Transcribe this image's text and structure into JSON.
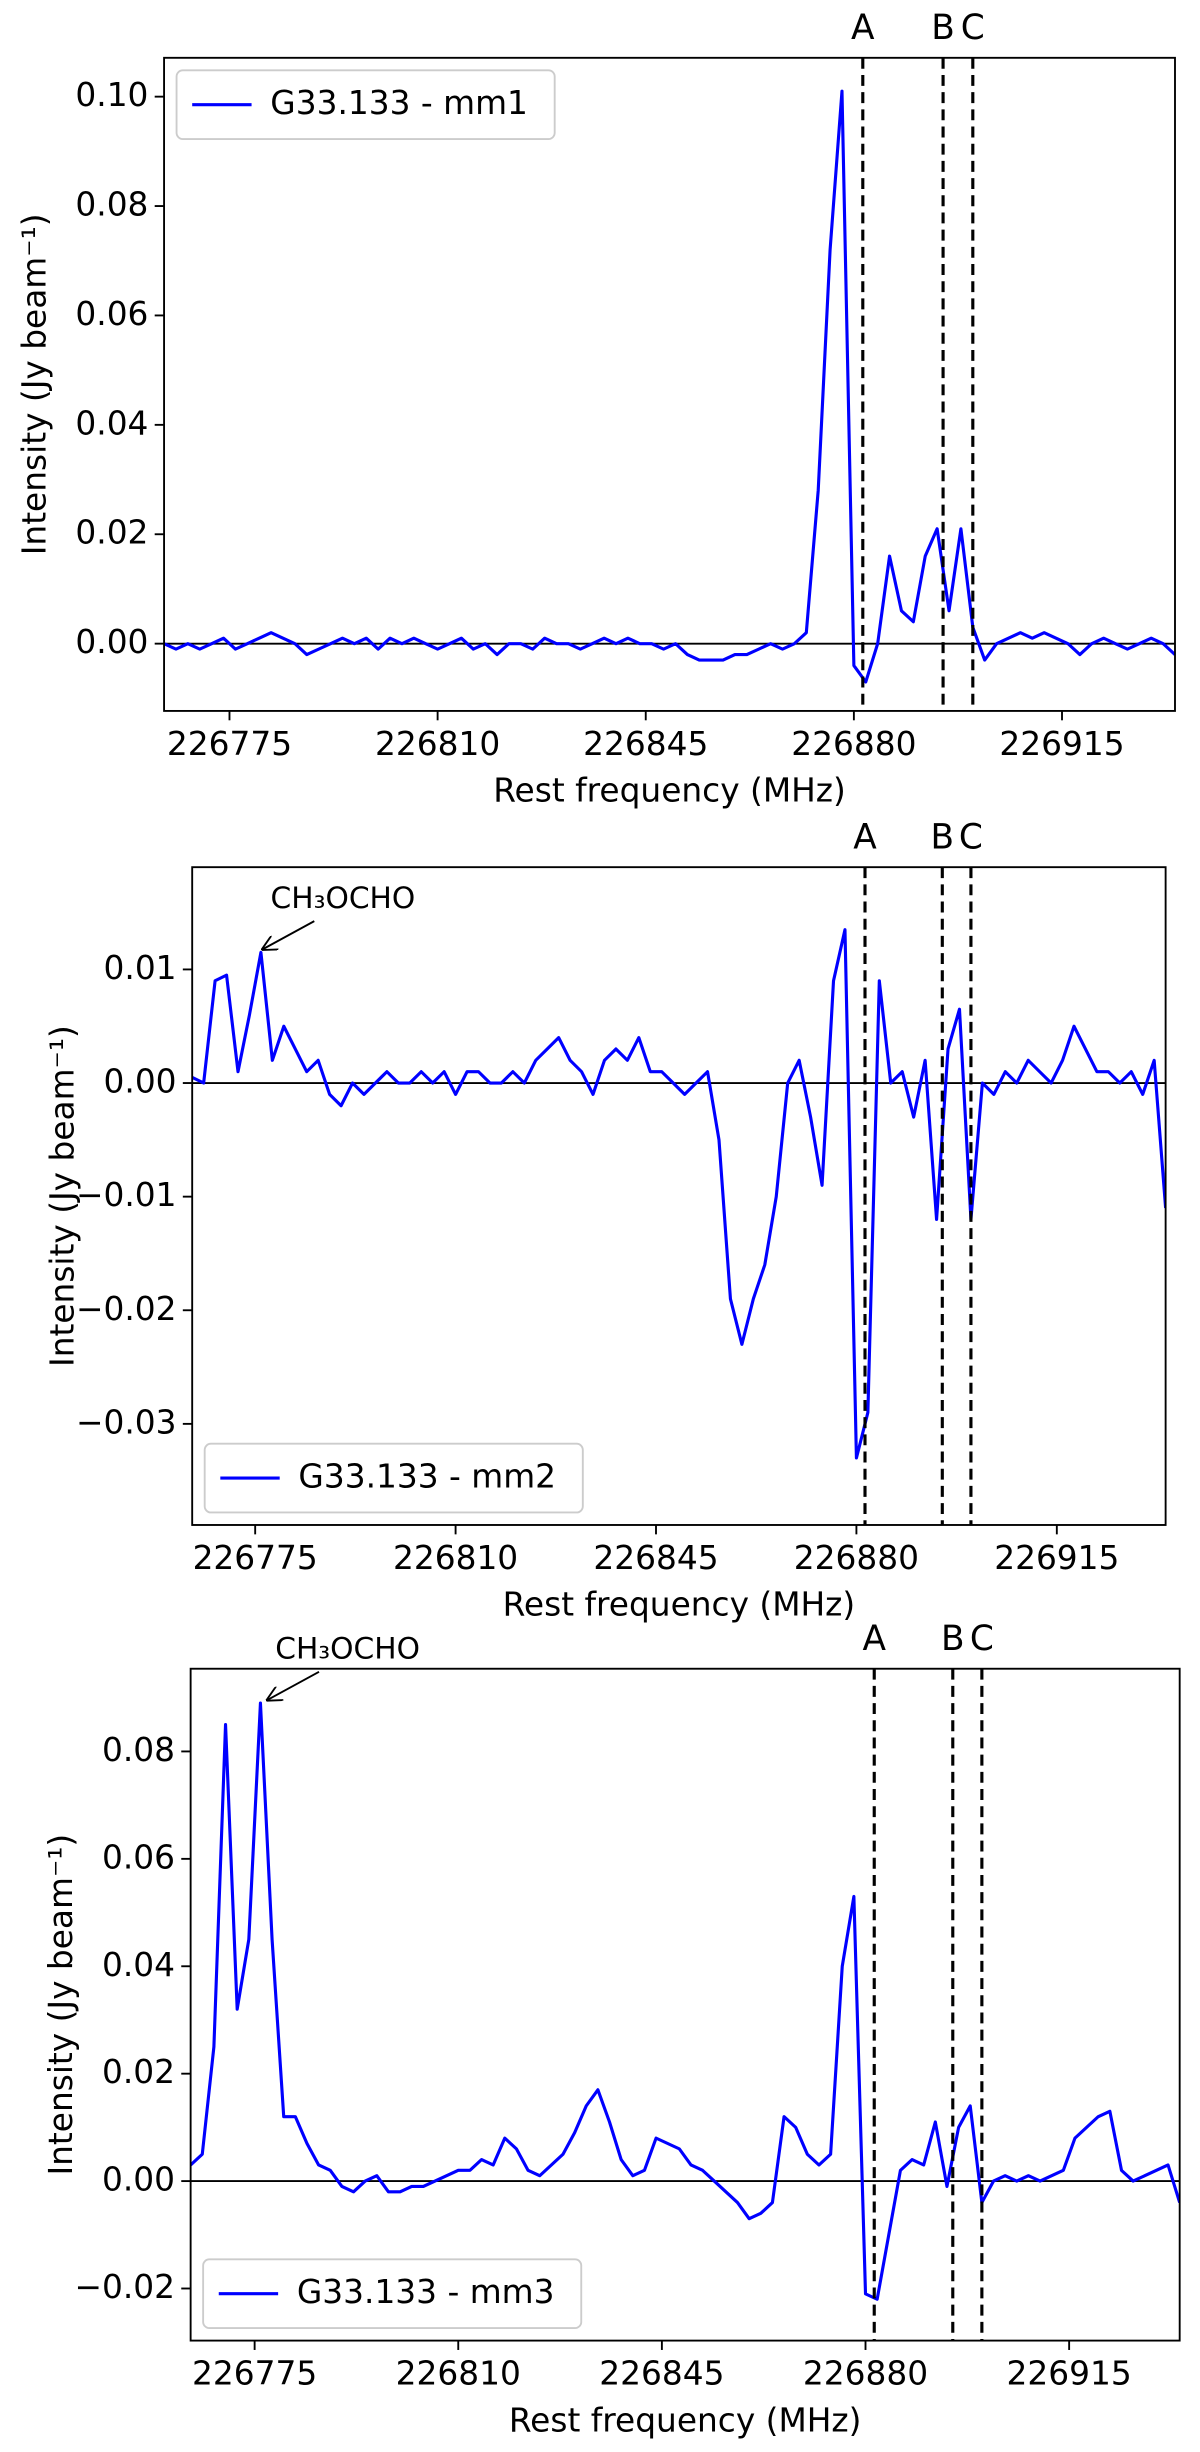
{
  "chart_data": [
    {
      "type": "line",
      "x": [
        226764,
        226766,
        226768,
        226770,
        226772,
        226774,
        226776,
        226778,
        226780,
        226782,
        226784,
        226786,
        226788,
        226790,
        226792,
        226794,
        226796,
        226798,
        226800,
        226802,
        226804,
        226806,
        226808,
        226810,
        226812,
        226814,
        226816,
        226818,
        226820,
        226822,
        226824,
        226826,
        226828,
        226830,
        226832,
        226834,
        226836,
        226838,
        226840,
        226842,
        226844,
        226846,
        226848,
        226850,
        226852,
        226854,
        226856,
        226858,
        226860,
        226862,
        226864,
        226866,
        226868,
        226870,
        226872,
        226874,
        226876,
        226878,
        226880,
        226882,
        226884,
        226886,
        226888,
        226890,
        226892,
        226894,
        226896,
        226898,
        226900,
        226902,
        226904,
        226906,
        226908,
        226910,
        226912,
        226914,
        226916,
        226918,
        226920,
        226922,
        226924,
        226926,
        226928,
        226930,
        226932,
        226934
      ],
      "series": [
        {
          "name": "G33.133 - mm1",
          "color": "#0000ff",
          "values": [
            0.0,
            -0.001,
            0.0,
            -0.001,
            0.0,
            0.001,
            -0.001,
            0.0,
            0.001,
            0.002,
            0.001,
            0.0,
            -0.002,
            -0.001,
            0.0,
            0.001,
            0.0,
            0.001,
            -0.001,
            0.001,
            0.0,
            0.001,
            0.0,
            -0.001,
            0.0,
            0.001,
            -0.001,
            0.0,
            -0.002,
            0.0,
            0.0,
            -0.001,
            0.001,
            0.0,
            0.0,
            -0.001,
            0.0,
            0.001,
            0.0,
            0.001,
            0.0,
            0.0,
            -0.001,
            0.0,
            -0.002,
            -0.003,
            -0.003,
            -0.003,
            -0.002,
            -0.002,
            -0.001,
            0.0,
            -0.001,
            0.0,
            0.002,
            0.028,
            0.072,
            0.101,
            -0.004,
            -0.007,
            0.0,
            0.016,
            0.006,
            0.004,
            0.016,
            0.021,
            0.006,
            0.021,
            0.003,
            -0.003,
            0.0,
            0.001,
            0.002,
            0.001,
            0.002,
            0.001,
            0.0,
            -0.002,
            0.0,
            0.001,
            0.0,
            -0.001,
            0.0,
            0.001,
            0.0,
            -0.002
          ]
        }
      ],
      "xlim": [
        226764,
        226934
      ],
      "ylim": [
        -0.0123,
        0.1071
      ],
      "xticks": [
        226775,
        226810,
        226845,
        226880,
        226915
      ],
      "yticks": [
        {
          "value": 0,
          "label": "0.00"
        },
        {
          "value": 0.02,
          "label": "0.02"
        },
        {
          "value": 0.04,
          "label": "0.04"
        },
        {
          "value": 0.06,
          "label": "0.06"
        },
        {
          "value": 0.08,
          "label": "0.08"
        },
        {
          "value": 0.1,
          "label": "0.10"
        }
      ],
      "xlabel": "Rest frequency (MHz)",
      "ylabel": "Intensity (Jy beam⁻¹)",
      "hline": 0,
      "legend": "upper left",
      "vlines": [
        {
          "x": 226881.5,
          "label": "A"
        },
        {
          "x": 226895,
          "label": "B"
        },
        {
          "x": 226900,
          "label": "C"
        }
      ]
    },
    {
      "type": "line",
      "x": [
        226764,
        226766,
        226768,
        226770,
        226772,
        226774,
        226776,
        226778,
        226780,
        226782,
        226784,
        226786,
        226788,
        226790,
        226792,
        226794,
        226796,
        226798,
        226800,
        226802,
        226804,
        226806,
        226808,
        226810,
        226812,
        226814,
        226816,
        226818,
        226820,
        226822,
        226824,
        226826,
        226828,
        226830,
        226832,
        226834,
        226836,
        226838,
        226840,
        226842,
        226844,
        226846,
        226848,
        226850,
        226852,
        226854,
        226856,
        226858,
        226860,
        226862,
        226864,
        226866,
        226868,
        226870,
        226872,
        226874,
        226876,
        226878,
        226880,
        226882,
        226884,
        226886,
        226888,
        226890,
        226892,
        226894,
        226896,
        226898,
        226900,
        226902,
        226904,
        226906,
        226908,
        226910,
        226912,
        226914,
        226916,
        226918,
        226920,
        226922,
        226924,
        226926,
        226928,
        226930,
        226932,
        226934
      ],
      "series": [
        {
          "name": "G33.133 - mm2",
          "color": "#0000ff",
          "values": [
            0.0005,
            0.0,
            0.009,
            0.0095,
            0.001,
            0.006,
            0.0115,
            0.002,
            0.005,
            0.003,
            0.001,
            0.002,
            -0.001,
            -0.002,
            0.0,
            -0.001,
            0.0,
            0.001,
            0.0,
            0.0,
            0.001,
            0.0,
            0.001,
            -0.001,
            0.001,
            0.001,
            0.0,
            0.0,
            0.001,
            0.0,
            0.002,
            0.003,
            0.004,
            0.002,
            0.001,
            -0.001,
            0.002,
            0.003,
            0.002,
            0.004,
            0.001,
            0.001,
            0.0,
            -0.001,
            0.0,
            0.001,
            -0.005,
            -0.019,
            -0.023,
            -0.019,
            -0.016,
            -0.01,
            0.0,
            0.002,
            -0.003,
            -0.009,
            0.009,
            0.0135,
            -0.033,
            -0.029,
            0.009,
            0.0,
            0.001,
            -0.003,
            0.002,
            -0.012,
            0.003,
            0.0065,
            -0.012,
            0.0,
            -0.001,
            0.001,
            0.0,
            0.002,
            0.001,
            0.0,
            0.002,
            0.005,
            0.003,
            0.001,
            0.001,
            0.0,
            0.001,
            -0.001,
            0.002,
            -0.011
          ]
        }
      ],
      "xlim": [
        226764,
        226934
      ],
      "ylim": [
        -0.0389,
        0.019
      ],
      "xticks": [
        226775,
        226810,
        226845,
        226880,
        226915
      ],
      "yticks": [
        {
          "value": -0.03,
          "label": "−0.03"
        },
        {
          "value": -0.02,
          "label": "−0.02"
        },
        {
          "value": -0.01,
          "label": "−0.01"
        },
        {
          "value": 0,
          "label": "0.00"
        },
        {
          "value": 0.01,
          "label": "0.01"
        }
      ],
      "xlabel": "Rest frequency (MHz)",
      "ylabel": "Intensity (Jy beam⁻¹)",
      "hline": 0,
      "legend": "lower left",
      "vlines": [
        {
          "x": 226881.5,
          "label": "A"
        },
        {
          "x": 226895,
          "label": "B"
        },
        {
          "x": 226900,
          "label": "C"
        }
      ],
      "annotations": [
        {
          "text": "CH₃OCHO",
          "xy": [
            226775.5,
            0.0115
          ]
        }
      ]
    },
    {
      "type": "line",
      "x": [
        226764,
        226766,
        226768,
        226770,
        226772,
        226774,
        226776,
        226778,
        226780,
        226782,
        226784,
        226786,
        226788,
        226790,
        226792,
        226794,
        226796,
        226798,
        226800,
        226802,
        226804,
        226806,
        226808,
        226810,
        226812,
        226814,
        226816,
        226818,
        226820,
        226822,
        226824,
        226826,
        226828,
        226830,
        226832,
        226834,
        226836,
        226838,
        226840,
        226842,
        226844,
        226846,
        226848,
        226850,
        226852,
        226854,
        226856,
        226858,
        226860,
        226862,
        226864,
        226866,
        226868,
        226870,
        226872,
        226874,
        226876,
        226878,
        226880,
        226882,
        226884,
        226886,
        226888,
        226890,
        226892,
        226894,
        226896,
        226898,
        226900,
        226902,
        226904,
        226906,
        226908,
        226910,
        226912,
        226914,
        226916,
        226918,
        226920,
        226922,
        226924,
        226926,
        226928,
        226930,
        226932,
        226934
      ],
      "series": [
        {
          "name": "G33.133 - mm3",
          "color": "#0000ff",
          "values": [
            0.003,
            0.005,
            0.025,
            0.085,
            0.032,
            0.045,
            0.089,
            0.045,
            0.012,
            0.012,
            0.007,
            0.003,
            0.002,
            -0.001,
            -0.002,
            0.0,
            0.001,
            -0.002,
            -0.002,
            -0.001,
            -0.001,
            0.0,
            0.001,
            0.002,
            0.002,
            0.004,
            0.003,
            0.008,
            0.006,
            0.002,
            0.001,
            0.003,
            0.005,
            0.009,
            0.014,
            0.017,
            0.011,
            0.004,
            0.001,
            0.002,
            0.008,
            0.007,
            0.006,
            0.003,
            0.002,
            0.0,
            -0.002,
            -0.004,
            -0.007,
            -0.006,
            -0.004,
            0.012,
            0.01,
            0.005,
            0.003,
            0.005,
            0.04,
            0.053,
            -0.021,
            -0.022,
            -0.01,
            0.002,
            0.004,
            0.003,
            0.011,
            -0.001,
            0.01,
            0.014,
            -0.004,
            0.0,
            0.001,
            0.0,
            0.001,
            0.0,
            0.001,
            0.002,
            0.008,
            0.01,
            0.012,
            0.013,
            0.002,
            0.0,
            0.001,
            0.002,
            0.003,
            -0.004
          ]
        }
      ],
      "xlim": [
        226764,
        226934
      ],
      "ylim": [
        -0.0297,
        0.0954
      ],
      "xticks": [
        226775,
        226810,
        226845,
        226880,
        226915
      ],
      "yticks": [
        {
          "value": -0.02,
          "label": "−0.02"
        },
        {
          "value": 0,
          "label": "0.00"
        },
        {
          "value": 0.02,
          "label": "0.02"
        },
        {
          "value": 0.04,
          "label": "0.04"
        },
        {
          "value": 0.06,
          "label": "0.06"
        },
        {
          "value": 0.08,
          "label": "0.08"
        }
      ],
      "xlabel": "Rest frequency (MHz)",
      "ylabel": "Intensity (Jy beam⁻¹)",
      "hline": 0,
      "legend": "lower left",
      "vlines": [
        {
          "x": 226881.5,
          "label": "A"
        },
        {
          "x": 226895,
          "label": "B"
        },
        {
          "x": 226900,
          "label": "C"
        }
      ],
      "annotations": [
        {
          "text": "CH₃OCHO",
          "xy": [
            226776.4,
            0.089
          ]
        }
      ]
    }
  ]
}
